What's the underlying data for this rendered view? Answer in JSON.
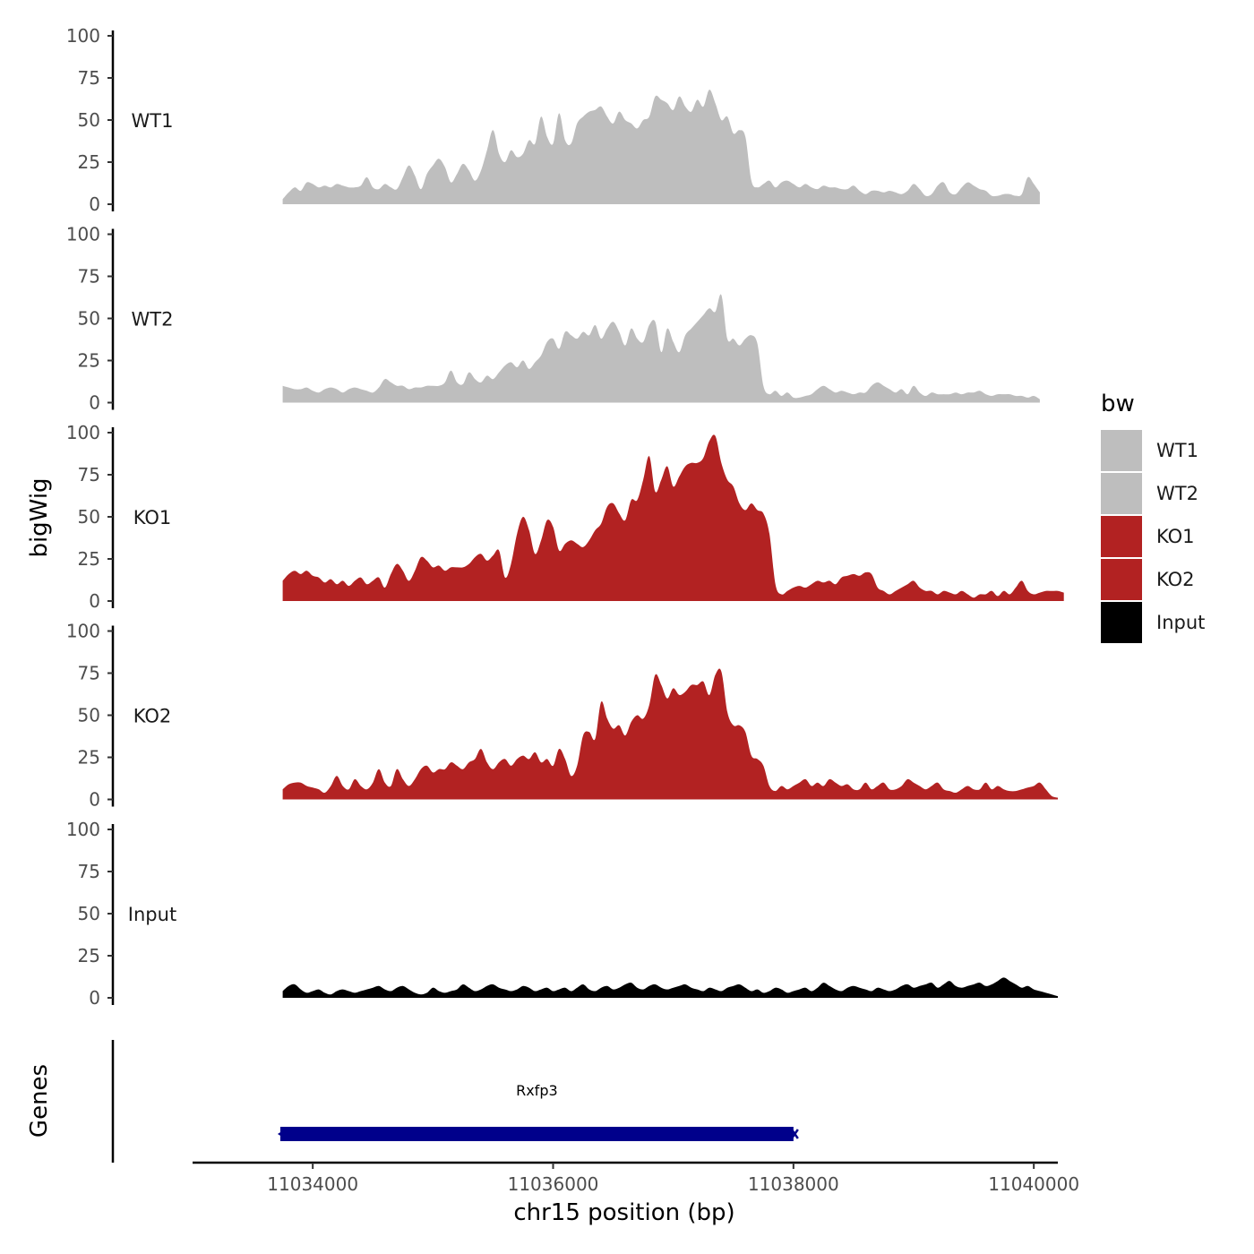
{
  "chart_data": {
    "type": "area",
    "y_axis_title": "bigWig",
    "genes_axis_title": "Genes",
    "x_axis_title": "chr15 position (bp)",
    "x_range": [
      11033000,
      11040200
    ],
    "x_ticks": [
      11034000,
      11036000,
      11038000,
      11040000
    ],
    "x_tick_labels": [
      "11034000",
      "11036000",
      "11038000",
      "11040000"
    ],
    "y_range": [
      0,
      100
    ],
    "y_ticks": [
      0,
      25,
      50,
      75,
      100
    ],
    "y_tick_labels": [
      "0",
      "25",
      "50",
      "75",
      "100"
    ],
    "data_x_start": 11033750,
    "data_x_step": 50,
    "tracks": [
      {
        "name": "WT1",
        "color": "#BEBEBE",
        "values": [
          3,
          7,
          10,
          8,
          13,
          12,
          10,
          11,
          10,
          12,
          11,
          10,
          10,
          11,
          16,
          10,
          9,
          12,
          10,
          9,
          16,
          23,
          17,
          9,
          18,
          23,
          27,
          22,
          13,
          18,
          24,
          20,
          14,
          20,
          32,
          44,
          30,
          25,
          32,
          28,
          30,
          38,
          36,
          52,
          40,
          36,
          54,
          38,
          36,
          48,
          52,
          55,
          56,
          58,
          52,
          48,
          55,
          50,
          48,
          45,
          50,
          52,
          64,
          62,
          60,
          56,
          64,
          58,
          55,
          62,
          58,
          68,
          60,
          50,
          52,
          42,
          44,
          40,
          14,
          10,
          12,
          14,
          10,
          13,
          14,
          12,
          10,
          12,
          10,
          9,
          11,
          10,
          10,
          9,
          9,
          11,
          8,
          6,
          8,
          8,
          7,
          8,
          7,
          6,
          8,
          12,
          9,
          5,
          6,
          11,
          13,
          7,
          6,
          10,
          13,
          11,
          9,
          8,
          5,
          5,
          6,
          6,
          5,
          6,
          16,
          12,
          7
        ]
      },
      {
        "name": "WT2",
        "color": "#BEBEBE",
        "values": [
          10,
          9,
          8,
          8,
          9,
          7,
          6,
          8,
          9,
          8,
          6,
          8,
          9,
          8,
          7,
          6,
          9,
          14,
          12,
          10,
          10,
          8,
          9,
          9,
          10,
          10,
          10,
          12,
          19,
          12,
          11,
          18,
          14,
          12,
          16,
          14,
          18,
          22,
          24,
          21,
          25,
          20,
          24,
          28,
          36,
          38,
          32,
          42,
          40,
          38,
          42,
          40,
          46,
          38,
          44,
          48,
          42,
          34,
          44,
          38,
          36,
          46,
          48,
          30,
          44,
          36,
          30,
          40,
          44,
          48,
          52,
          56,
          54,
          64,
          38,
          38,
          34,
          38,
          40,
          35,
          10,
          5,
          7,
          4,
          6,
          3,
          3,
          4,
          5,
          8,
          10,
          8,
          6,
          7,
          6,
          5,
          6,
          6,
          10,
          12,
          10,
          8,
          6,
          8,
          5,
          10,
          6,
          4,
          6,
          5,
          5,
          5,
          6,
          5,
          6,
          6,
          7,
          5,
          4,
          5,
          5,
          5,
          4,
          4,
          3,
          4,
          2
        ]
      },
      {
        "name": "KO1",
        "color": "#B22222",
        "values": [
          12,
          16,
          18,
          16,
          18,
          15,
          14,
          11,
          13,
          10,
          12,
          9,
          12,
          14,
          10,
          12,
          14,
          8,
          16,
          22,
          18,
          12,
          18,
          26,
          24,
          20,
          21,
          18,
          20,
          20,
          20,
          22,
          26,
          28,
          24,
          27,
          30,
          14,
          22,
          40,
          50,
          42,
          28,
          36,
          48,
          44,
          30,
          34,
          36,
          34,
          32,
          36,
          42,
          46,
          56,
          58,
          52,
          48,
          60,
          60,
          72,
          86,
          65,
          72,
          80,
          68,
          74,
          80,
          82,
          82,
          85,
          95,
          98,
          82,
          72,
          68,
          58,
          54,
          58,
          54,
          52,
          40,
          10,
          4,
          6,
          8,
          9,
          8,
          10,
          12,
          11,
          12,
          10,
          14,
          15,
          16,
          15,
          17,
          16,
          8,
          6,
          4,
          6,
          8,
          10,
          12,
          8,
          6,
          6,
          4,
          6,
          5,
          4,
          6,
          4,
          2,
          4,
          4,
          6,
          3,
          6,
          4,
          8,
          12,
          6,
          4,
          5,
          6,
          6,
          6,
          5
        ]
      },
      {
        "name": "KO2",
        "color": "#B22222",
        "values": [
          6,
          9,
          10,
          10,
          8,
          7,
          6,
          4,
          8,
          14,
          8,
          6,
          12,
          8,
          6,
          10,
          18,
          10,
          8,
          18,
          12,
          8,
          12,
          18,
          20,
          16,
          18,
          18,
          22,
          20,
          18,
          22,
          24,
          30,
          22,
          18,
          22,
          24,
          20,
          24,
          26,
          24,
          28,
          22,
          24,
          20,
          30,
          24,
          14,
          20,
          38,
          40,
          36,
          58,
          48,
          42,
          44,
          38,
          46,
          50,
          48,
          56,
          74,
          68,
          60,
          66,
          62,
          64,
          68,
          68,
          70,
          62,
          74,
          76,
          52,
          44,
          44,
          40,
          26,
          24,
          20,
          8,
          5,
          8,
          6,
          8,
          10,
          12,
          8,
          10,
          8,
          12,
          10,
          8,
          9,
          6,
          6,
          10,
          6,
          8,
          10,
          6,
          6,
          8,
          12,
          10,
          8,
          6,
          8,
          10,
          6,
          5,
          4,
          6,
          8,
          6,
          6,
          10,
          6,
          8,
          6,
          5,
          5,
          6,
          7,
          8,
          10,
          6,
          2,
          1
        ]
      },
      {
        "name": "Input",
        "color": "#000000",
        "values": [
          4,
          7,
          8,
          5,
          3,
          4,
          5,
          3,
          2,
          4,
          5,
          4,
          3,
          4,
          5,
          6,
          7,
          5,
          4,
          6,
          7,
          5,
          3,
          2,
          3,
          6,
          4,
          3,
          4,
          5,
          8,
          6,
          4,
          5,
          7,
          8,
          6,
          5,
          4,
          5,
          7,
          6,
          4,
          5,
          6,
          4,
          5,
          6,
          4,
          6,
          8,
          5,
          4,
          6,
          7,
          5,
          6,
          8,
          9,
          6,
          5,
          7,
          8,
          6,
          5,
          6,
          7,
          8,
          6,
          5,
          4,
          6,
          5,
          4,
          6,
          7,
          8,
          6,
          4,
          5,
          3,
          4,
          6,
          5,
          3,
          4,
          5,
          6,
          4,
          6,
          9,
          7,
          5,
          4,
          6,
          7,
          6,
          5,
          4,
          6,
          5,
          4,
          5,
          7,
          8,
          6,
          7,
          8,
          9,
          6,
          8,
          10,
          7,
          6,
          7,
          8,
          9,
          7,
          8,
          10,
          12,
          10,
          8,
          6,
          7,
          5,
          4,
          3,
          2,
          1
        ]
      }
    ],
    "legend": {
      "title": "bw",
      "position": "right",
      "entries": [
        {
          "label": "WT1",
          "color": "#BEBEBE"
        },
        {
          "label": "WT2",
          "color": "#BEBEBE"
        },
        {
          "label": "KO1",
          "color": "#B22222"
        },
        {
          "label": "KO2",
          "color": "#B22222"
        },
        {
          "label": "Input",
          "color": "#000000"
        }
      ]
    },
    "genes": [
      {
        "name": "Rxfp3",
        "start": 11033730,
        "end": 11038000,
        "strand": "-",
        "color": "#00008B"
      }
    ]
  }
}
